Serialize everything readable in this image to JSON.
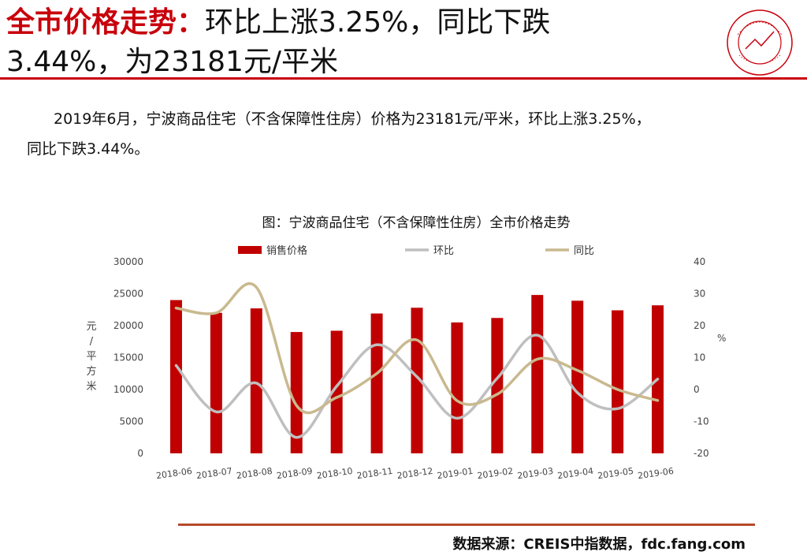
{
  "header": {
    "title_highlight": "全市价格走势：",
    "title_line1_rest": "环比上涨3.25%，同比下跌",
    "title_line2": "3.44%，为23181元/平米"
  },
  "body": {
    "paragraph_line1": "2019年6月，宁波商品住宅（不含保障性住房）价格为23181元/平米，环比上涨3.25%，",
    "paragraph_line2": "同比下跌3.44%。"
  },
  "colors": {
    "accent": "#c8000b",
    "bar": "#c00000",
    "mom_line": "#bfbfbf",
    "yoy_line": "#c9b98f",
    "source_rule": "#b5492a"
  },
  "chart_data": {
    "type": "bar",
    "title": "图：宁波商品住宅（不含保障性住房）全市价格走势",
    "categories": [
      "2018-06",
      "2018-07",
      "2018-08",
      "2018-09",
      "2018-10",
      "2018-11",
      "2018-12",
      "2019-01",
      "2019-02",
      "2019-03",
      "2019-04",
      "2019-05",
      "2019-06"
    ],
    "series": [
      {
        "name": "销售价格",
        "type": "bar",
        "axis": "left",
        "values": [
          24000,
          22000,
          22700,
          19000,
          19200,
          21900,
          22800,
          20500,
          21200,
          24800,
          23900,
          22400,
          23181
        ]
      },
      {
        "name": "环比",
        "type": "line",
        "axis": "right",
        "values": [
          7.5,
          -7.0,
          2.0,
          -15.0,
          1.0,
          14.0,
          4.0,
          -9.0,
          3.5,
          17.0,
          -1.0,
          -6.0,
          3.25
        ]
      },
      {
        "name": "同比",
        "type": "line",
        "axis": "right",
        "values": [
          25.5,
          24.0,
          32.0,
          -5.0,
          -2.5,
          5.0,
          15.5,
          -3.5,
          -1.5,
          9.5,
          6.0,
          0.0,
          -3.44
        ]
      }
    ],
    "ylabel_left": "元/平方米",
    "ylabel_right": "%",
    "ylim_left": [
      0,
      30000
    ],
    "ylim_right": [
      -20,
      40
    ],
    "yticks_left": [
      "30000",
      "25000",
      "20000",
      "15000",
      "10000",
      "5000",
      "0"
    ],
    "yticks_right": [
      "40",
      "30",
      "20",
      "10",
      "0",
      "-10",
      "-20"
    ],
    "legend_position": "top",
    "grid": false
  },
  "footer": {
    "source": "数据来源：CREIS中指数据，fdc.fang.com"
  }
}
